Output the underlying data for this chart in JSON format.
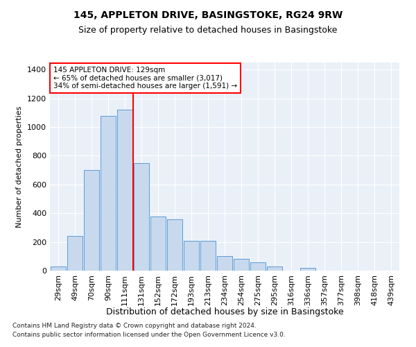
{
  "title": "145, APPLETON DRIVE, BASINGSTOKE, RG24 9RW",
  "subtitle": "Size of property relative to detached houses in Basingstoke",
  "xlabel": "Distribution of detached houses by size in Basingstoke",
  "ylabel": "Number of detached properties",
  "footnote1": "Contains HM Land Registry data © Crown copyright and database right 2024.",
  "footnote2": "Contains public sector information licensed under the Open Government Licence v3.0.",
  "categories": [
    "29sqm",
    "49sqm",
    "70sqm",
    "90sqm",
    "111sqm",
    "131sqm",
    "152sqm",
    "172sqm",
    "193sqm",
    "213sqm",
    "234sqm",
    "254sqm",
    "275sqm",
    "295sqm",
    "316sqm",
    "336sqm",
    "357sqm",
    "377sqm",
    "398sqm",
    "418sqm",
    "439sqm"
  ],
  "values": [
    30,
    240,
    700,
    1080,
    1120,
    750,
    375,
    360,
    210,
    210,
    100,
    80,
    60,
    30,
    0,
    20,
    0,
    0,
    0,
    0,
    0
  ],
  "bar_color": "#c8d9ed",
  "bar_edge_color": "#5b9bd5",
  "background_color": "#eaf0f8",
  "grid_color": "#ffffff",
  "vline_x_index": 5,
  "vline_color": "red",
  "annotation_text": "145 APPLETON DRIVE: 129sqm\n← 65% of detached houses are smaller (3,017)\n34% of semi-detached houses are larger (1,591) →",
  "annotation_box_color": "white",
  "annotation_box_edge": "red",
  "ylim": [
    0,
    1450
  ],
  "yticks": [
    0,
    200,
    400,
    600,
    800,
    1000,
    1200,
    1400
  ],
  "title_fontsize": 10,
  "subtitle_fontsize": 9,
  "ylabel_fontsize": 8,
  "xlabel_fontsize": 9,
  "tick_fontsize": 8,
  "xtick_fontsize": 8,
  "footnote_fontsize": 6.5
}
